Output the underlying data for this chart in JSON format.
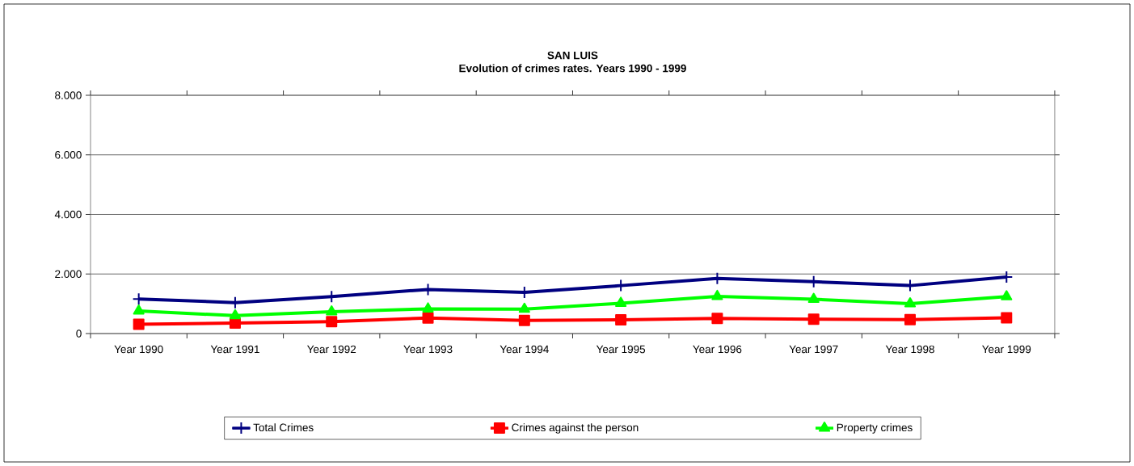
{
  "chart_data": {
    "type": "line",
    "title": "SAN LUIS",
    "subtitle": "Evolution of crimes rates. Years 1990 - 1999",
    "categories": [
      "Year 1990",
      "Year 1991",
      "Year 1992",
      "Year 1993",
      "Year 1994",
      "Year 1995",
      "Year 1996",
      "Year 1997",
      "Year 1998",
      "Year 1999"
    ],
    "series": [
      {
        "name": "Total  Crimes",
        "color": "#000080",
        "marker": "cross",
        "values": [
          1160,
          1040,
          1240,
          1480,
          1380,
          1610,
          1850,
          1740,
          1610,
          1900
        ]
      },
      {
        "name": "Crimes against the person",
        "color": "#ff0000",
        "marker": "square",
        "values": [
          310,
          350,
          400,
          520,
          440,
          460,
          510,
          480,
          470,
          530
        ]
      },
      {
        "name": "Property crimes",
        "color": "#00ff00",
        "marker": "triangle",
        "values": [
          760,
          600,
          730,
          830,
          820,
          1020,
          1250,
          1150,
          1000,
          1240
        ]
      }
    ],
    "ylim": [
      0,
      8000
    ],
    "yticks": [
      {
        "value": 0,
        "label": "0"
      },
      {
        "value": 2000,
        "label": "2.000"
      },
      {
        "value": 4000,
        "label": "4.000"
      },
      {
        "value": 6000,
        "label": "6.000"
      },
      {
        "value": 8000,
        "label": "8.000"
      }
    ],
    "grid": "y",
    "legend": "bottom",
    "line_style": "solid"
  }
}
